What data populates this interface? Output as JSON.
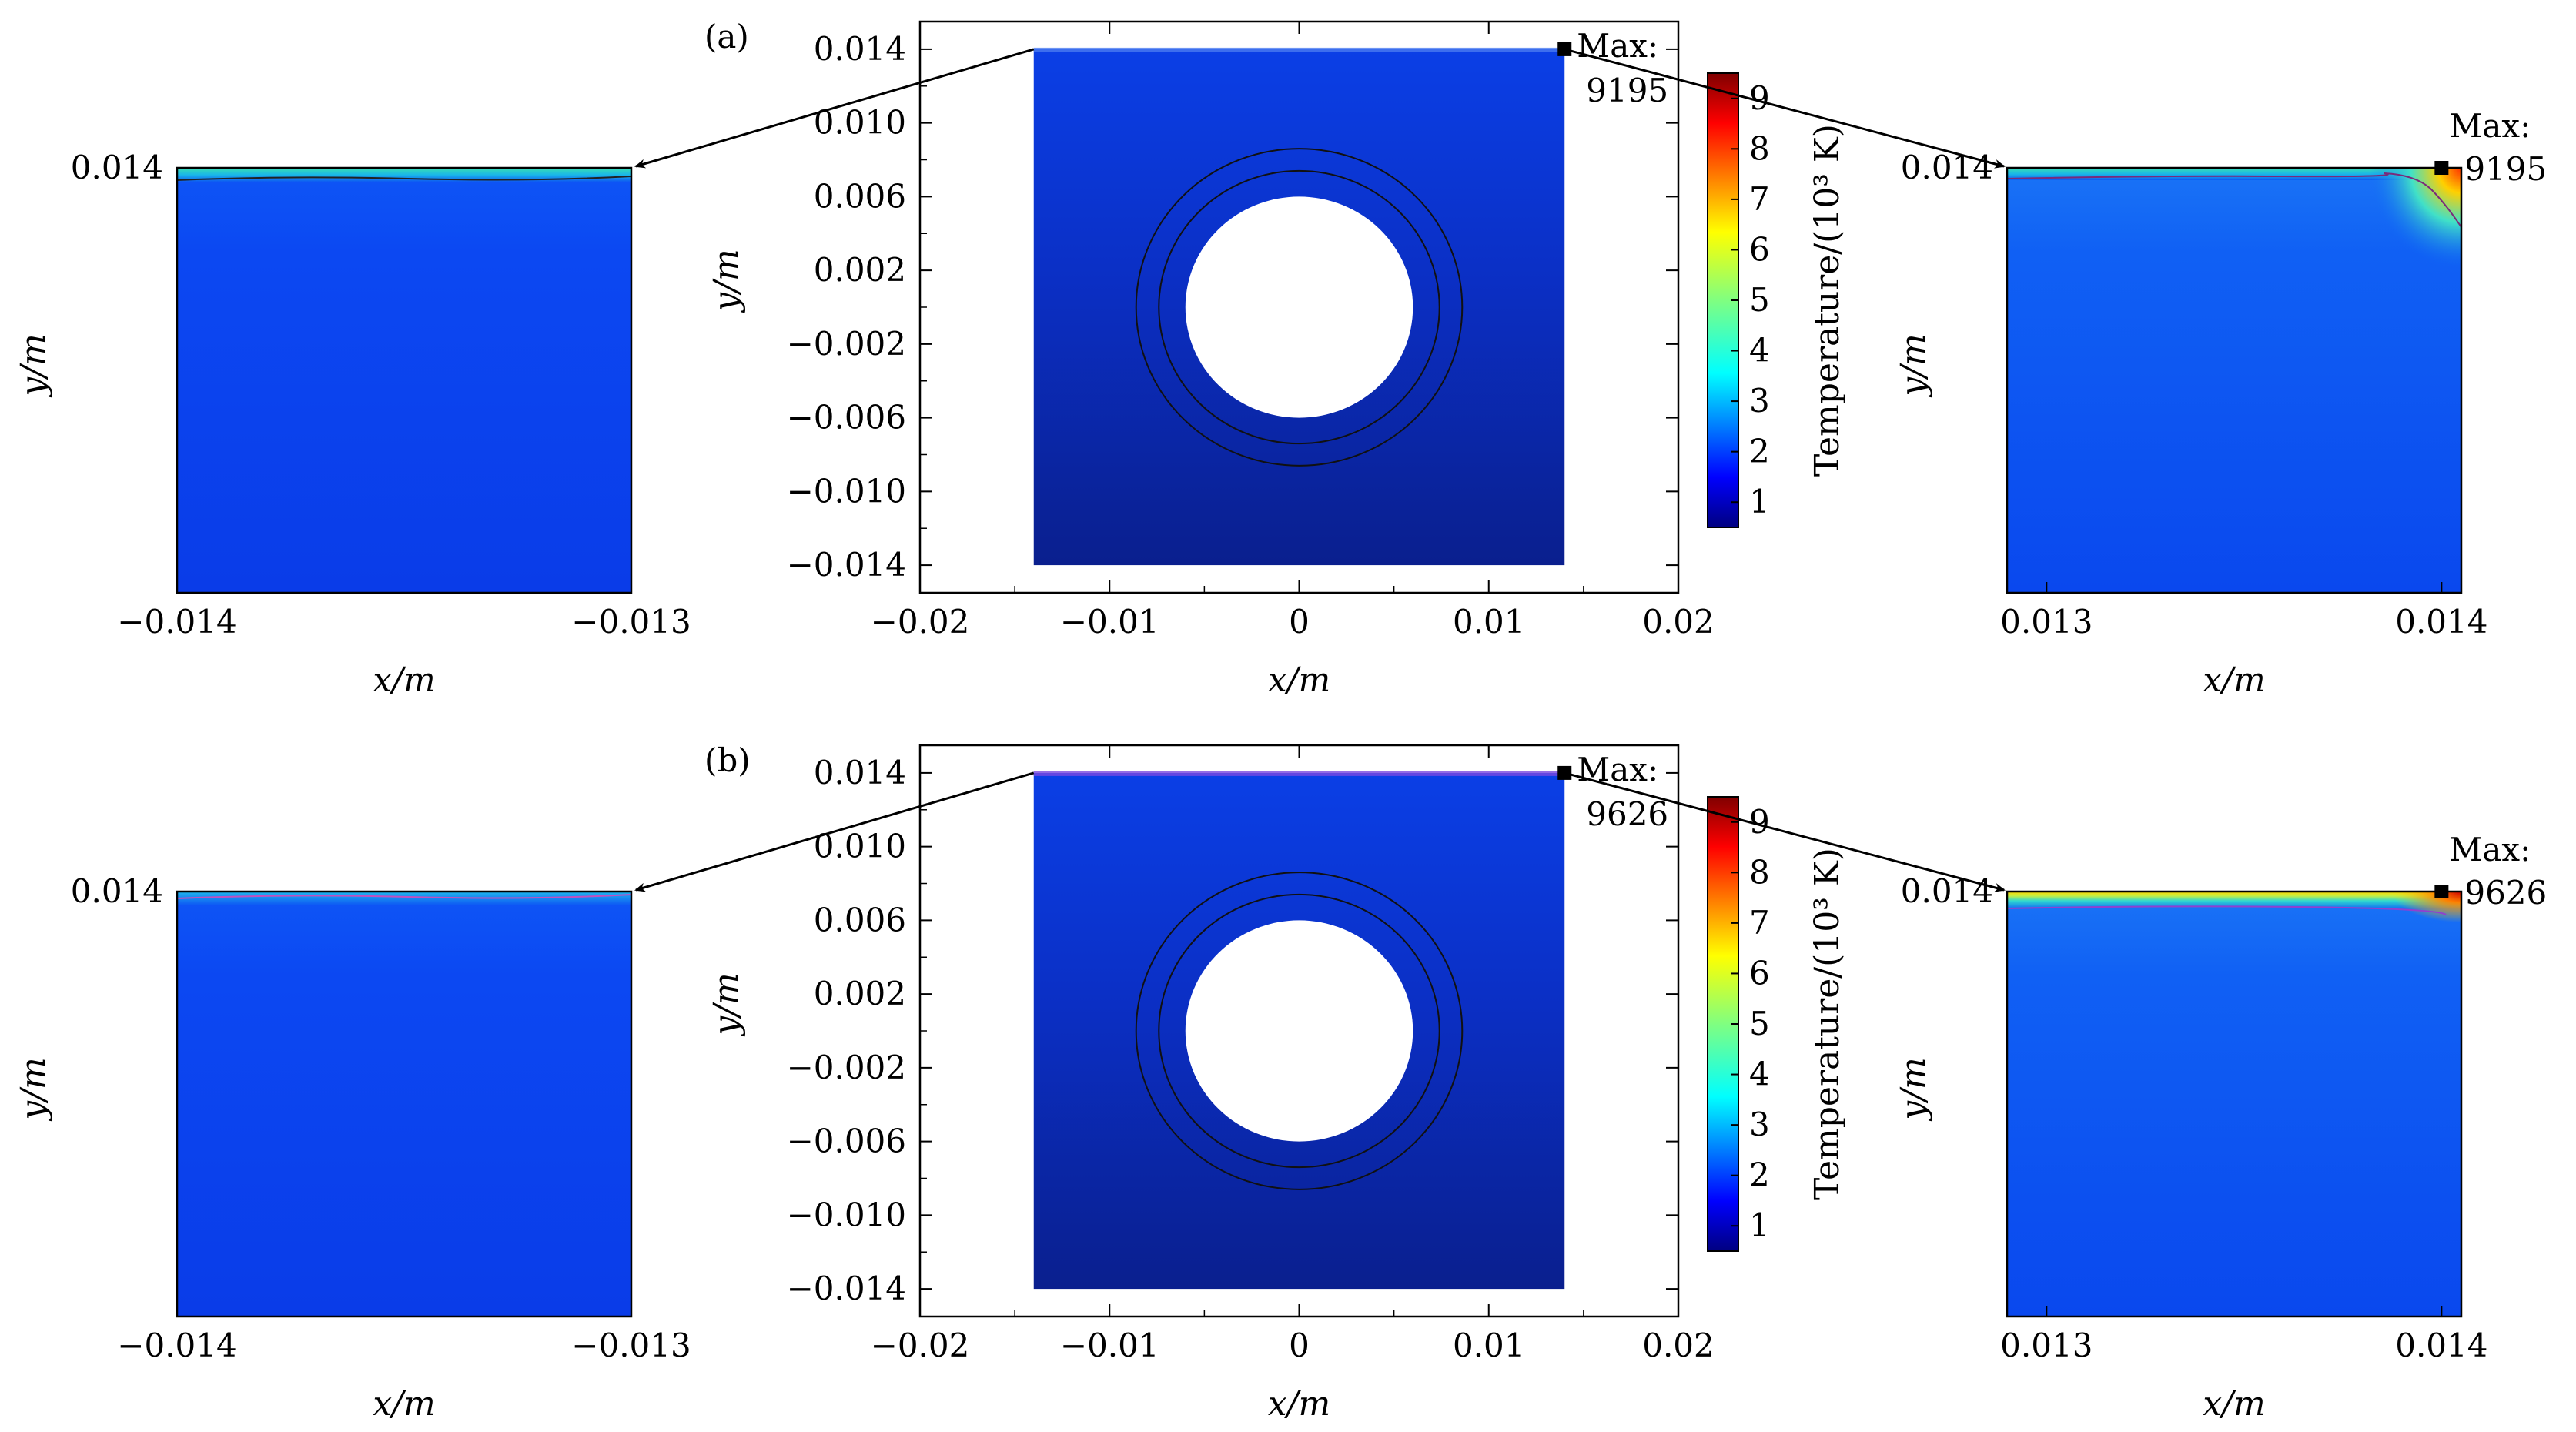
{
  "figure": {
    "panels": [
      {
        "label": "(a)",
        "max_label": "Max:",
        "max_value": "9195",
        "colorbar": {
          "label": "Temperature/(10³ K)",
          "ticks": [
            "1",
            "2",
            "3",
            "4",
            "5",
            "6",
            "7",
            "8",
            "9"
          ]
        }
      },
      {
        "label": "(b)",
        "max_label": "Max:",
        "max_value": "9626",
        "colorbar": {
          "label": "Temperature/(10³ K)",
          "ticks": [
            "1",
            "2",
            "3",
            "4",
            "5",
            "6",
            "7",
            "8",
            "9"
          ]
        }
      }
    ],
    "zoom_left": {
      "xticks": [
        "−0.014",
        "−0.013"
      ],
      "yticks": [
        "0.014"
      ],
      "xlabel": "x/m",
      "ylabel": "y/m"
    },
    "zoom_right": {
      "xticks": [
        "0.013",
        "0.014"
      ],
      "yticks": [
        "0.014"
      ],
      "xlabel": "x/m",
      "ylabel": "y/m"
    },
    "main_axes": {
      "xticks": [
        "−0.02",
        "−0.01",
        "0",
        "0.01",
        "0.02"
      ],
      "yticks": [
        "0.014",
        "0.010",
        "0.006",
        "0.002",
        "−0.002",
        "−0.006",
        "−0.010",
        "−0.014"
      ],
      "xlabel": "x/m",
      "ylabel": "y/m"
    },
    "colors": {
      "field_dark": "#0a1f8e",
      "field_mid": "#0b3fe0",
      "field_bright": "#0d4df0",
      "hot_edge": "#3be0b0"
    }
  },
  "chart_data": [
    {
      "type": "heatmap",
      "panel": "(a) main",
      "xlabel": "x/m",
      "ylabel": "y/m",
      "xlim": [
        -0.02,
        0.02
      ],
      "ylim": [
        -0.0155,
        0.0155
      ],
      "domain": {
        "x": [
          -0.014,
          0.014
        ],
        "y": [
          -0.014,
          0.014
        ]
      },
      "hole": {
        "center": [
          0,
          0
        ],
        "radius": 0.006
      },
      "rings": [
        0.0074,
        0.0086
      ],
      "max_temperature_K": 9195,
      "max_location": [
        0.014,
        0.014
      ],
      "colorbar": {
        "label": "Temperature/(10³ K)",
        "range": [
          0.5,
          9.5
        ],
        "ticks": [
          1,
          2,
          3,
          4,
          5,
          6,
          7,
          8,
          9
        ]
      }
    },
    {
      "type": "heatmap",
      "panel": "(a) zoom left",
      "xlabel": "x/m",
      "ylabel": "y/m",
      "xlim": [
        -0.014,
        -0.013
      ],
      "top_boundary": 0.014,
      "surface_layer_temp_1e3K": 4
    },
    {
      "type": "heatmap",
      "panel": "(a) zoom right",
      "xlabel": "x/m",
      "ylabel": "y/m",
      "xlim": [
        0.0129,
        0.01405
      ],
      "top_boundary": 0.014,
      "max_temperature_K": 9195,
      "max_location": [
        0.014,
        0.014
      ]
    },
    {
      "type": "heatmap",
      "panel": "(b) main",
      "xlabel": "x/m",
      "ylabel": "y/m",
      "xlim": [
        -0.02,
        0.02
      ],
      "ylim": [
        -0.0155,
        0.0155
      ],
      "domain": {
        "x": [
          -0.014,
          0.014
        ],
        "y": [
          -0.014,
          0.014
        ]
      },
      "hole": {
        "center": [
          0,
          0
        ],
        "radius": 0.006
      },
      "rings": [
        0.0074,
        0.0086
      ],
      "max_temperature_K": 9626,
      "max_location": [
        0.014,
        0.014
      ],
      "colorbar": {
        "label": "Temperature/(10³ K)",
        "range": [
          0.5,
          9.5
        ],
        "ticks": [
          1,
          2,
          3,
          4,
          5,
          6,
          7,
          8,
          9
        ]
      }
    },
    {
      "type": "heatmap",
      "panel": "(b) zoom left",
      "xlabel": "x/m",
      "ylabel": "y/m",
      "xlim": [
        -0.014,
        -0.013
      ],
      "top_boundary": 0.014,
      "surface_layer_temp_1e3K": 2.5
    },
    {
      "type": "heatmap",
      "panel": "(b) zoom right",
      "xlabel": "x/m",
      "ylabel": "y/m",
      "xlim": [
        0.0129,
        0.01405
      ],
      "top_boundary": 0.014,
      "max_temperature_K": 9626,
      "max_location": [
        0.014,
        0.014
      ]
    }
  ]
}
